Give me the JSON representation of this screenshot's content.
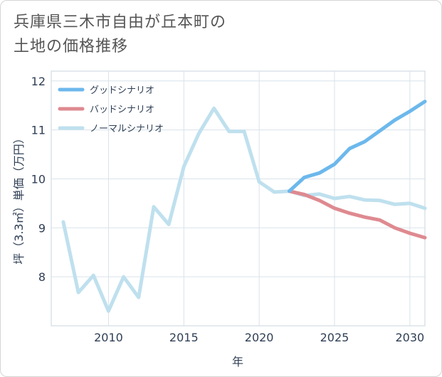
{
  "title_lines": [
    "兵庫県三木市自由が丘本町の",
    "土地の価格推移"
  ],
  "chart_data": {
    "type": "line",
    "title": "兵庫県三木市自由が丘本町の土地の価格推移",
    "xlabel": "年",
    "ylabel": "坪（3.3㎡）単価（万円）",
    "xlim": [
      2006.2,
      2031
    ],
    "ylim": [
      7,
      12.2
    ],
    "xticks": [
      2010,
      2015,
      2020,
      2025,
      2030
    ],
    "yticks": [
      8,
      9,
      10,
      11,
      12
    ],
    "grid": true,
    "legend_position": "top-left",
    "series": [
      {
        "name": "グッドシナリオ",
        "color": "#6cb8ec",
        "x": [
          2022,
          2023,
          2024,
          2025,
          2026,
          2027,
          2028,
          2029,
          2030,
          2031
        ],
        "y": [
          9.75,
          10.03,
          10.12,
          10.3,
          10.62,
          10.76,
          10.98,
          11.2,
          11.38,
          11.58
        ]
      },
      {
        "name": "バッドシナリオ",
        "color": "#de8a90",
        "x": [
          2022,
          2023,
          2024,
          2025,
          2026,
          2027,
          2028,
          2029,
          2030,
          2031
        ],
        "y": [
          9.75,
          9.68,
          9.56,
          9.4,
          9.3,
          9.22,
          9.16,
          9.0,
          8.89,
          8.8
        ]
      },
      {
        "name": "ノーマルシナリオ",
        "color": "#bfe0ee",
        "x": [
          2007,
          2008,
          2009,
          2010,
          2011,
          2012,
          2013,
          2014,
          2015,
          2016,
          2017,
          2018,
          2019,
          2020,
          2021,
          2022,
          2023,
          2024,
          2025,
          2026,
          2027,
          2028,
          2029,
          2030,
          2031
        ],
        "y": [
          9.12,
          7.68,
          8.03,
          7.3,
          8.0,
          7.58,
          9.43,
          9.07,
          10.25,
          10.93,
          11.44,
          10.97,
          10.97,
          9.94,
          9.73,
          9.75,
          9.66,
          9.69,
          9.6,
          9.64,
          9.57,
          9.56,
          9.48,
          9.5,
          9.4
        ]
      }
    ]
  }
}
